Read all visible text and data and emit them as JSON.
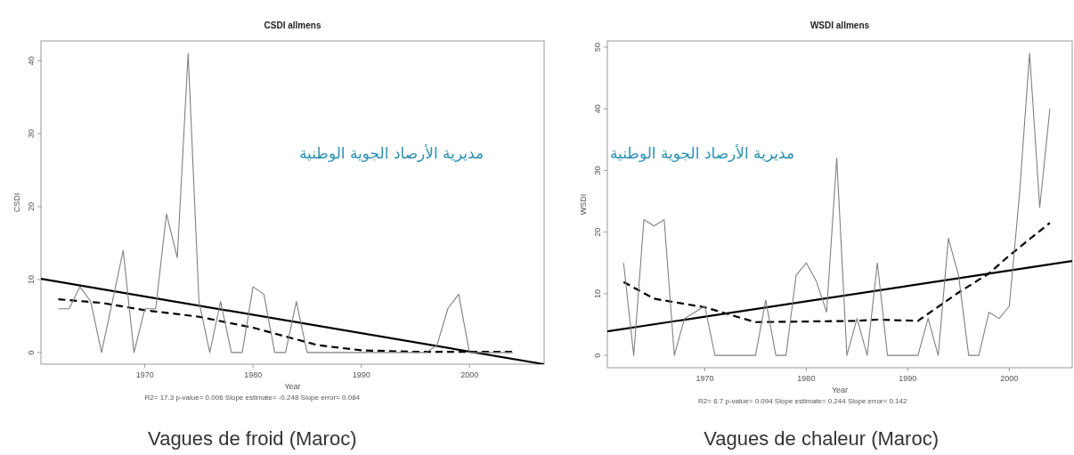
{
  "chart_data": [
    {
      "type": "line",
      "title": "CSDI   allmens",
      "xlabel": "Year",
      "ylabel": "CSDI",
      "annotations": [
        "R2= 17.3   p-value= 0.006   Slope estimate= -0.248   Slope error= 0.084",
        "مديرية الأرصاد الجوية الوطنية",
        "Vagues de froid (Maroc)"
      ],
      "xlim": [
        1960.4,
        2006.9
      ],
      "ylim": [
        -1.6,
        42.7
      ],
      "xticks": [
        1970,
        1980,
        1990,
        2000
      ],
      "yticks": [
        0,
        10,
        20,
        30,
        40
      ],
      "series": [
        {
          "color": "#808080",
          "line_style": "solid",
          "x": [
            1962,
            1963,
            1964,
            1965,
            1966,
            1967,
            1968,
            1969,
            1970,
            1971,
            1972,
            1973,
            1974,
            1975,
            1976,
            1977,
            1978,
            1979,
            1980,
            1981,
            1982,
            1983,
            1984,
            1985,
            1986,
            1987,
            1988,
            1989,
            1990,
            1991,
            1992,
            1993,
            1994,
            1995,
            1996,
            1997,
            1998,
            1999,
            2000,
            2001,
            2002,
            2003,
            2004
          ],
          "values": [
            6,
            6,
            9,
            7,
            0,
            7,
            14,
            0,
            6,
            6,
            19,
            13,
            41,
            7,
            0,
            7,
            0,
            0,
            9,
            8,
            0,
            0,
            7,
            0,
            0,
            0,
            0,
            0,
            0,
            0,
            0,
            0,
            0,
            0,
            0,
            1,
            6,
            8,
            0,
            0,
            0,
            0,
            0
          ]
        },
        {
          "color": "#000000",
          "line_style": "solid",
          "x": [
            1960.4,
            2006.9
          ],
          "values": [
            10.1,
            -1.6
          ]
        },
        {
          "color": "#000000",
          "line_style": "dashed",
          "x": [
            1962,
            1966,
            1970,
            1975,
            1980,
            1983,
            1986,
            1990,
            1995,
            2004
          ],
          "values": [
            7.3,
            6.8,
            5.8,
            4.9,
            3.4,
            2.2,
            1.0,
            0.3,
            0.1,
            0.1
          ]
        }
      ]
    },
    {
      "type": "line",
      "title": "WSDI   allmens",
      "xlabel": "Year",
      "ylabel": "WSDI",
      "annotations": [
        "R2= 6.7   p-value= 0.094   Slope estimate= 0.244   Slope error= 0.142",
        "مديرية الأرصاد الجوية الوطنية",
        "Vagues de chaleur (Maroc)"
      ],
      "xlim": [
        1960.4,
        2006.2
      ],
      "ylim": [
        -2,
        51
      ],
      "xticks": [
        1970,
        1980,
        1990,
        2000
      ],
      "yticks": [
        0,
        10,
        20,
        30,
        40,
        50
      ],
      "series": [
        {
          "color": "#808080",
          "line_style": "solid",
          "x": [
            1962,
            1963,
            1964,
            1965,
            1966,
            1967,
            1968,
            1969,
            1970,
            1971,
            1972,
            1973,
            1974,
            1975,
            1976,
            1977,
            1978,
            1979,
            1980,
            1981,
            1982,
            1983,
            1984,
            1985,
            1986,
            1987,
            1988,
            1989,
            1990,
            1991,
            1992,
            1993,
            1994,
            1995,
            1996,
            1997,
            1998,
            1999,
            2000,
            2001,
            2002,
            2003,
            2004
          ],
          "values": [
            15,
            0,
            22,
            21,
            22,
            0,
            6,
            7,
            8,
            0,
            0,
            0,
            0,
            0,
            9,
            0,
            0,
            13,
            15,
            12,
            7,
            32,
            0,
            6,
            0,
            15,
            0,
            0,
            0,
            0,
            6,
            0,
            19,
            13,
            0,
            0,
            7,
            6,
            8,
            26,
            49,
            24,
            40
          ]
        },
        {
          "color": "#000000",
          "line_style": "solid",
          "x": [
            1960.4,
            2006.2
          ],
          "values": [
            3.9,
            15.3
          ]
        },
        {
          "color": "#000000",
          "line_style": "dashed",
          "x": [
            1962,
            1965,
            1970,
            1975,
            1980,
            1985,
            1987,
            1991,
            1995,
            1998,
            2000,
            2004
          ],
          "values": [
            11.9,
            9.2,
            7.8,
            5.4,
            5.5,
            5.6,
            5.8,
            5.6,
            10.2,
            13.3,
            16.2,
            21.5
          ]
        }
      ]
    }
  ]
}
